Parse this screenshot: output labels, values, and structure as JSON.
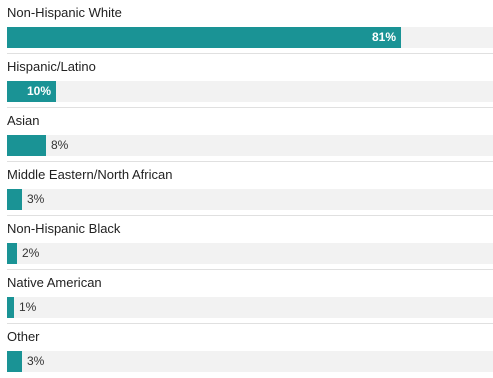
{
  "chart_data": {
    "type": "bar",
    "orientation": "horizontal",
    "categories": [
      "Non-Hispanic White",
      "Hispanic/Latino",
      "Asian",
      "Middle Eastern/North African",
      "Non-Hispanic Black",
      "Native American",
      "Other"
    ],
    "values": [
      81,
      10,
      8,
      3,
      2,
      1,
      3
    ],
    "value_labels": [
      "81%",
      "10%",
      "8%",
      "3%",
      "2%",
      "1%",
      "3%"
    ],
    "unit": "%",
    "xlim": [
      0,
      100
    ],
    "title": "",
    "xlabel": "",
    "ylabel": "",
    "grid": false,
    "legend": "none"
  },
  "colors": {
    "bar": "#1a9395",
    "track": "#f2f2f2",
    "text": "#222222"
  }
}
